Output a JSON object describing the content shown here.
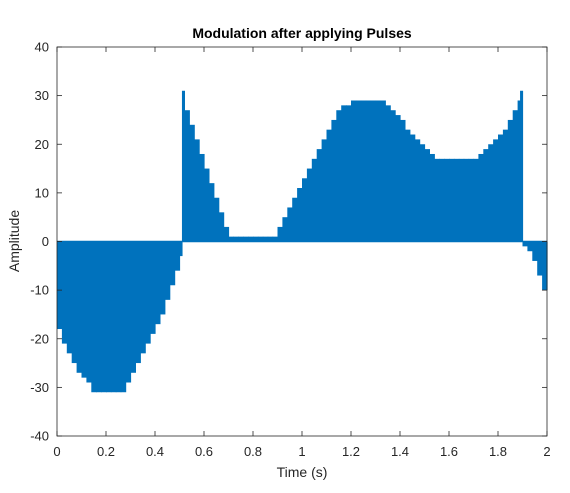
{
  "chart_data": {
    "type": "area",
    "title": "Modulation after applying Pulses",
    "xlabel": "Time (s)",
    "ylabel": "Amplitude",
    "xlim": [
      0,
      2
    ],
    "ylim": [
      -40,
      40
    ],
    "xticks": [
      0,
      0.2,
      0.4,
      0.6,
      0.8,
      1,
      1.2,
      1.4,
      1.6,
      1.8,
      2
    ],
    "xtick_labels": [
      "0",
      "0.2",
      "0.4",
      "0.6",
      "0.8",
      "1",
      "1.2",
      "1.4",
      "1.6",
      "1.8",
      "2"
    ],
    "yticks": [
      -40,
      -30,
      -20,
      -10,
      0,
      10,
      20,
      30,
      40
    ],
    "ytick_labels": [
      "-40",
      "-30",
      "-20",
      "-10",
      "0",
      "10",
      "20",
      "30",
      "40"
    ],
    "grid": false,
    "series": [
      {
        "color": "#0072bd",
        "x": [
          0.0,
          0.02,
          0.04,
          0.06,
          0.08,
          0.1,
          0.12,
          0.14,
          0.16,
          0.18,
          0.2,
          0.22,
          0.24,
          0.26,
          0.28,
          0.3,
          0.32,
          0.34,
          0.36,
          0.38,
          0.4,
          0.42,
          0.44,
          0.46,
          0.48,
          0.5,
          0.51,
          0.52,
          0.54,
          0.56,
          0.58,
          0.6,
          0.62,
          0.64,
          0.66,
          0.68,
          0.7,
          0.72,
          0.74,
          0.76,
          0.78,
          0.8,
          0.82,
          0.84,
          0.86,
          0.88,
          0.9,
          0.92,
          0.94,
          0.96,
          0.98,
          1.0,
          1.02,
          1.04,
          1.06,
          1.08,
          1.1,
          1.12,
          1.14,
          1.16,
          1.18,
          1.2,
          1.22,
          1.24,
          1.26,
          1.28,
          1.3,
          1.32,
          1.34,
          1.36,
          1.38,
          1.4,
          1.42,
          1.44,
          1.46,
          1.48,
          1.5,
          1.52,
          1.54,
          1.56,
          1.58,
          1.6,
          1.62,
          1.64,
          1.66,
          1.68,
          1.7,
          1.72,
          1.74,
          1.76,
          1.78,
          1.8,
          1.82,
          1.84,
          1.86,
          1.88,
          1.89,
          1.9,
          1.92,
          1.94,
          1.96,
          1.98,
          2.0
        ],
        "y": [
          -18,
          -21,
          -23,
          -25,
          -27,
          -28,
          -29,
          -31,
          -31,
          -31,
          -31,
          -31,
          -31,
          -31,
          -29,
          -27,
          -25,
          -23,
          -21,
          -19,
          -17,
          -15,
          -12,
          -9,
          -6,
          -3,
          31,
          27,
          24,
          21,
          18,
          15,
          12,
          9,
          6,
          3,
          1,
          1,
          1,
          1,
          1,
          1,
          1,
          1,
          1,
          1,
          3,
          5,
          7,
          9,
          11,
          13,
          15,
          17,
          19,
          21,
          23,
          25,
          27,
          28,
          28,
          29,
          29,
          29,
          29,
          29,
          29,
          29,
          28,
          27,
          26,
          25,
          23,
          22,
          21,
          20,
          19,
          18,
          17,
          17,
          17,
          17,
          17,
          17,
          17,
          17,
          17,
          18,
          19,
          20,
          21,
          22,
          23,
          25,
          27,
          29,
          31,
          -1,
          -2,
          -4,
          -7,
          -10,
          -13
        ]
      }
    ]
  }
}
